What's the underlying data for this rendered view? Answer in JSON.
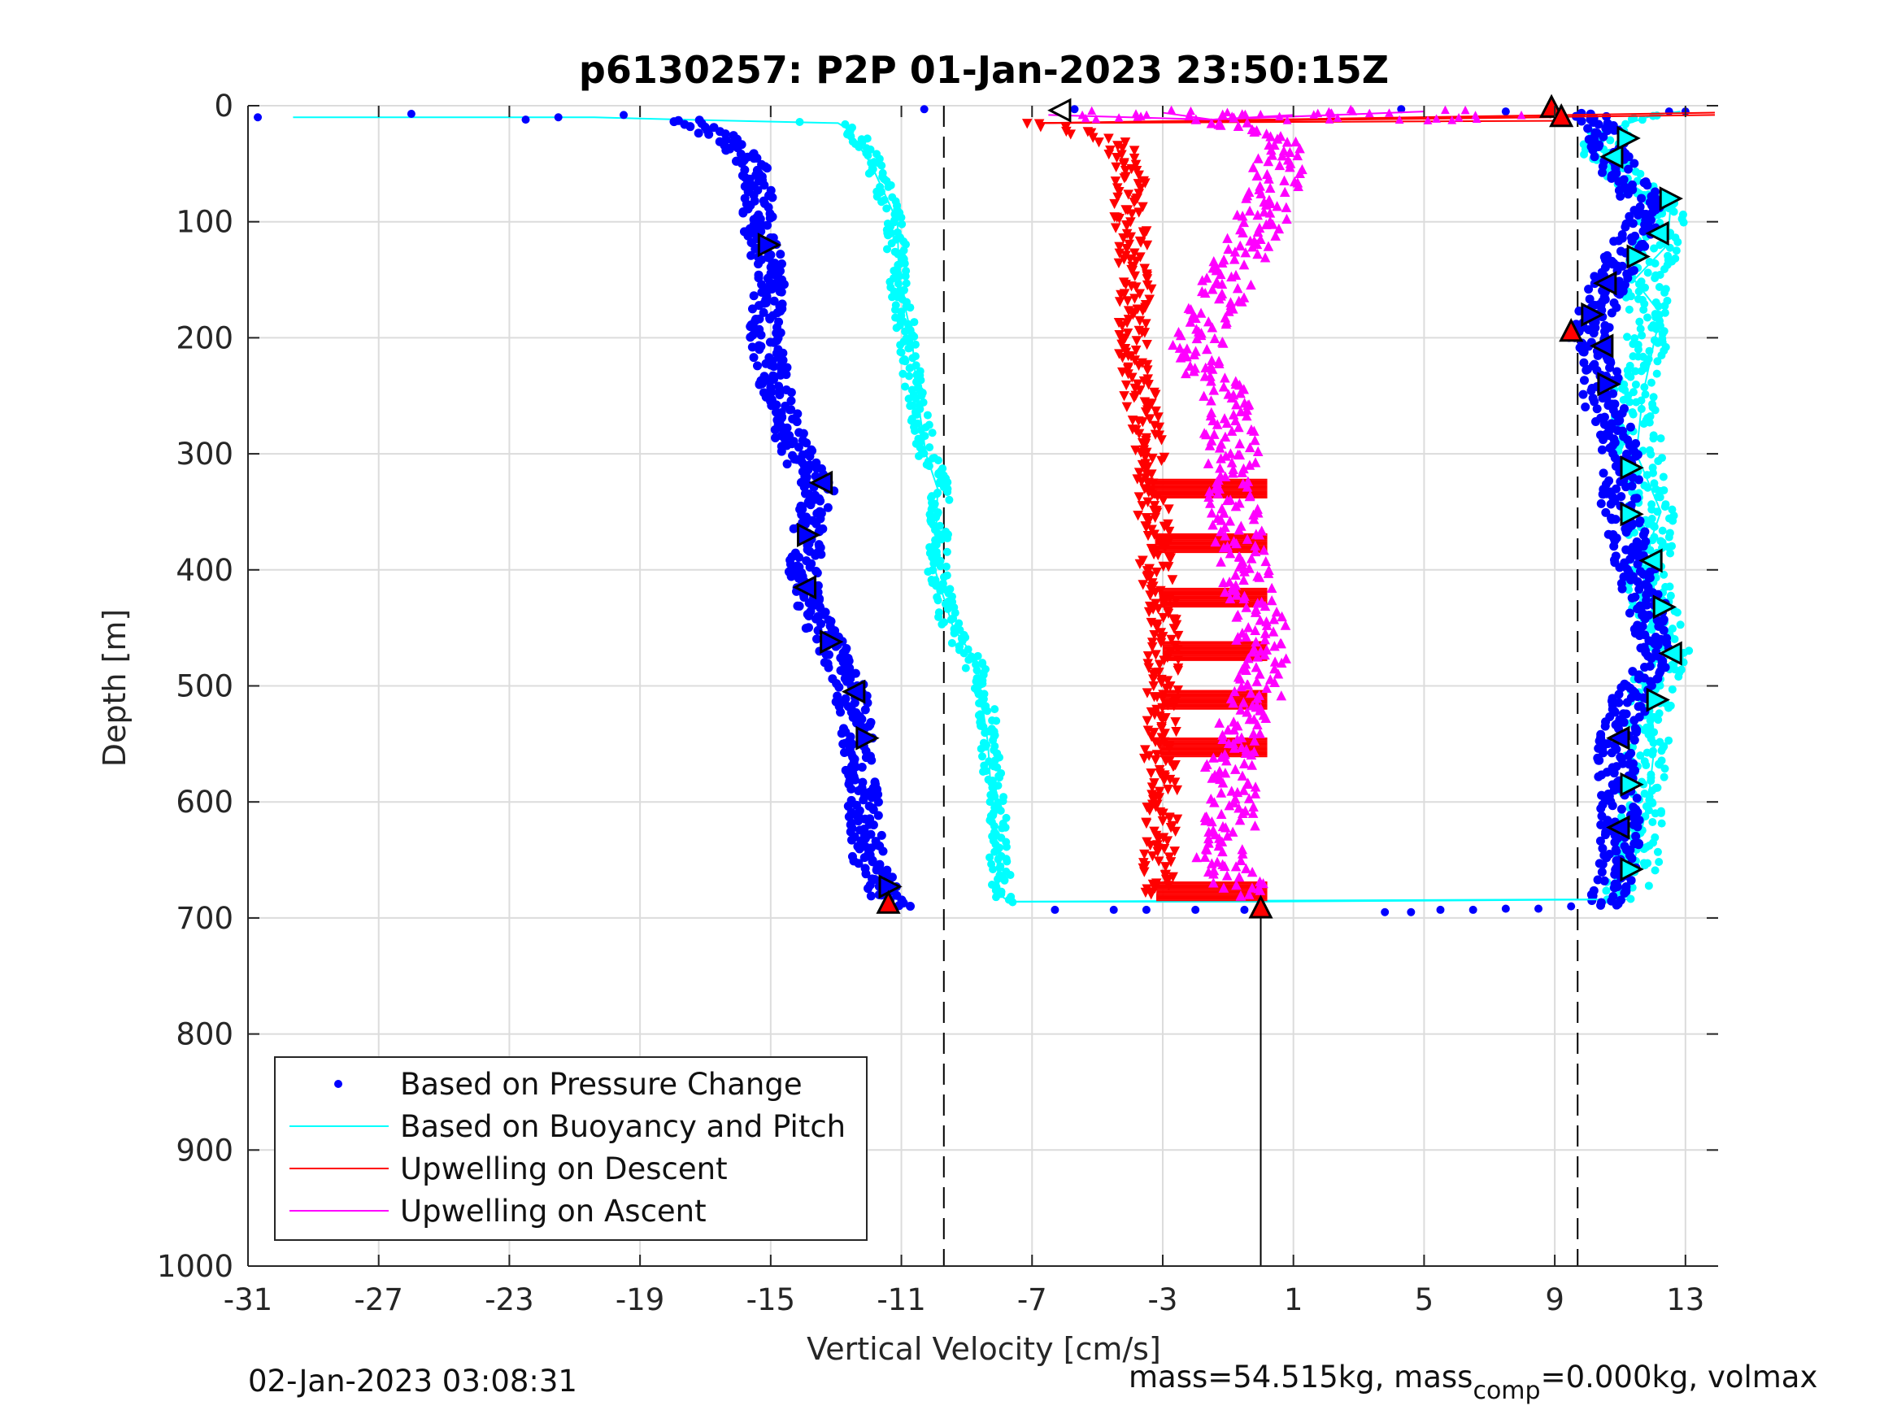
{
  "chart_data": {
    "type": "scatter",
    "title": "p6130257: P2P 01-Jan-2023 23:50:15Z",
    "xlabel": "Vertical Velocity [cm/s]",
    "ylabel": "Depth [m]",
    "xlim": [
      -31,
      14
    ],
    "ylim": [
      0,
      1000
    ],
    "y_reversed": true,
    "grid": true,
    "xticks": [
      -31,
      -27,
      -23,
      -19,
      -15,
      -11,
      -7,
      -3,
      1,
      5,
      9,
      13
    ],
    "yticks": [
      0,
      100,
      200,
      300,
      400,
      500,
      600,
      700,
      800,
      900,
      1000
    ],
    "legend": {
      "placement": "bottom-left",
      "entries": [
        {
          "label": "Based on Pressure Change",
          "color": "#0000ff",
          "style": "dot"
        },
        {
          "label": "Based on Buoyancy and Pitch",
          "color": "#00ffff",
          "style": "line"
        },
        {
          "label": "Upwelling on Descent",
          "color": "#ff0000",
          "style": "line"
        },
        {
          "label": "Upwelling on Ascent",
          "color": "#ff00ff",
          "style": "line"
        }
      ]
    },
    "reference_lines": {
      "dashed_x": [
        -9.7,
        9.7
      ],
      "solid_x": [
        0
      ]
    },
    "series": [
      {
        "name": "Based on Pressure Change",
        "color": "#0000ff",
        "descent_profile": [
          [
            5,
            -17.5
          ],
          [
            10,
            -17.8
          ],
          [
            20,
            -17
          ],
          [
            30,
            -16.3
          ],
          [
            50,
            -15.5
          ],
          [
            80,
            -15.3
          ],
          [
            100,
            -15.4
          ],
          [
            150,
            -15
          ],
          [
            200,
            -15.2
          ],
          [
            250,
            -14.8
          ],
          [
            300,
            -14.2
          ],
          [
            330,
            -13.5
          ],
          [
            370,
            -13.9
          ],
          [
            400,
            -14
          ],
          [
            450,
            -13.5
          ],
          [
            500,
            -12.6
          ],
          [
            550,
            -12.3
          ],
          [
            600,
            -12.2
          ],
          [
            650,
            -12
          ],
          [
            680,
            -11.5
          ],
          [
            690,
            -11.2
          ]
        ],
        "ascent_profile": [
          [
            690,
            10.3
          ],
          [
            680,
            10.7
          ],
          [
            650,
            11
          ],
          [
            600,
            11
          ],
          [
            550,
            10.8
          ],
          [
            500,
            11.5
          ],
          [
            470,
            12.2
          ],
          [
            430,
            11.8
          ],
          [
            400,
            11.5
          ],
          [
            350,
            11
          ],
          [
            300,
            11
          ],
          [
            250,
            10.4
          ],
          [
            220,
            10.3
          ],
          [
            200,
            10
          ],
          [
            180,
            10.3
          ],
          [
            150,
            10.7
          ],
          [
            120,
            11.2
          ],
          [
            90,
            12
          ],
          [
            60,
            11
          ],
          [
            30,
            10.6
          ],
          [
            10,
            10.3
          ],
          [
            5,
            9.5
          ]
        ],
        "surface_points": [
          [
            10,
            -30.7
          ],
          [
            7,
            -26
          ],
          [
            12,
            -22.5
          ],
          [
            10,
            -21.5
          ],
          [
            8,
            -19.5
          ],
          [
            3,
            -10.3
          ],
          [
            3,
            -5.7
          ],
          [
            3,
            4.3
          ],
          [
            5,
            7.5
          ],
          [
            5,
            12.5
          ],
          [
            5,
            13
          ]
        ],
        "bottom_points": [
          [
            693,
            -6.3
          ],
          [
            693,
            -4.5
          ],
          [
            693,
            -3.5
          ],
          [
            693,
            -2
          ],
          [
            693,
            -0.5
          ],
          [
            695,
            3.8
          ],
          [
            695,
            4.6
          ],
          [
            693,
            5.5
          ],
          [
            693,
            6.5
          ],
          [
            692,
            7.5
          ],
          [
            692,
            8.5
          ],
          [
            690,
            9.5
          ]
        ]
      },
      {
        "name": "Based on Buoyancy and Pitch",
        "color": "#00ffff",
        "descent_profile": [
          [
            10,
            -29.5
          ],
          [
            10,
            -20.5
          ],
          [
            12,
            -17.8
          ],
          [
            15,
            -12.8
          ],
          [
            20,
            -12.5
          ],
          [
            50,
            -11.8
          ],
          [
            100,
            -11.2
          ],
          [
            150,
            -11.1
          ],
          [
            200,
            -10.8
          ],
          [
            250,
            -10.6
          ],
          [
            300,
            -10.2
          ],
          [
            330,
            -9.8
          ],
          [
            400,
            -9.9
          ],
          [
            450,
            -9.5
          ],
          [
            480,
            -8.8
          ],
          [
            500,
            -8.5
          ],
          [
            550,
            -8.3
          ],
          [
            600,
            -8.1
          ],
          [
            650,
            -8
          ],
          [
            680,
            -7.9
          ],
          [
            686,
            -7.8
          ]
        ],
        "ascent_profile": [
          [
            686,
            0
          ],
          [
            684,
            11
          ],
          [
            650,
            11.6
          ],
          [
            600,
            11.6
          ],
          [
            550,
            11.8
          ],
          [
            500,
            12
          ],
          [
            470,
            12.5
          ],
          [
            430,
            12
          ],
          [
            400,
            11.8
          ],
          [
            350,
            12
          ],
          [
            300,
            11.6
          ],
          [
            250,
            11.4
          ],
          [
            200,
            11.8
          ],
          [
            180,
            12
          ],
          [
            150,
            11.7
          ],
          [
            120,
            12.2
          ],
          [
            90,
            12.3
          ],
          [
            60,
            11
          ],
          [
            40,
            10.5
          ],
          [
            20,
            10.6
          ],
          [
            8,
            12
          ],
          [
            5,
            13
          ]
        ]
      },
      {
        "name": "Upwelling on Descent",
        "color": "#ff0000",
        "profile": [
          [
            15,
            -6.8
          ],
          [
            30,
            -4.5
          ],
          [
            50,
            -4
          ],
          [
            100,
            -4
          ],
          [
            150,
            -3.8
          ],
          [
            200,
            -4
          ],
          [
            250,
            -3.7
          ],
          [
            300,
            -3.4
          ],
          [
            330,
            -3.3
          ],
          [
            400,
            -3.2
          ],
          [
            450,
            -3
          ],
          [
            500,
            -3
          ],
          [
            550,
            -3.1
          ],
          [
            600,
            -3
          ],
          [
            650,
            -3.1
          ],
          [
            680,
            -3.2
          ]
        ],
        "bands": [
          {
            "depth": 330,
            "to": 0.2
          },
          {
            "depth": 377,
            "to": 0.2
          },
          {
            "depth": 424,
            "to": 0.2
          },
          {
            "depth": 470,
            "to": 0.2
          },
          {
            "depth": 512,
            "to": 0.2
          },
          {
            "depth": 553,
            "to": 0.2
          },
          {
            "depth": 677,
            "to": 0.2
          }
        ]
      },
      {
        "name": "Upwelling on Ascent",
        "color": "#ff00ff",
        "profile": [
          [
            10,
            -1.5
          ],
          [
            30,
            0.5
          ],
          [
            60,
            0.5
          ],
          [
            100,
            0
          ],
          [
            150,
            -1
          ],
          [
            180,
            -1.5
          ],
          [
            200,
            -2
          ],
          [
            250,
            -1.2
          ],
          [
            300,
            -0.8
          ],
          [
            330,
            -1
          ],
          [
            400,
            -0.5
          ],
          [
            450,
            0
          ],
          [
            500,
            0.1
          ],
          [
            550,
            -1
          ],
          [
            600,
            -0.8
          ],
          [
            650,
            -1.2
          ],
          [
            680,
            -0.5
          ]
        ]
      }
    ],
    "markers": [
      {
        "type": "triangle-left",
        "depth": 4,
        "v": -6.1,
        "fill": "#ffffff"
      },
      {
        "type": "triangle-right",
        "depth": 120,
        "v": -15.1,
        "fill": "#0000ff"
      },
      {
        "type": "triangle-left",
        "depth": 325,
        "v": -13.4,
        "fill": "#0000ff"
      },
      {
        "type": "triangle-right",
        "depth": 370,
        "v": -13.9,
        "fill": "#0000ff"
      },
      {
        "type": "triangle-left",
        "depth": 415,
        "v": -13.9,
        "fill": "#0000ff"
      },
      {
        "type": "triangle-right",
        "depth": 462,
        "v": -13.2,
        "fill": "#0000ff"
      },
      {
        "type": "triangle-left",
        "depth": 505,
        "v": -12.4,
        "fill": "#0000ff"
      },
      {
        "type": "triangle-right",
        "depth": 545,
        "v": -12.1,
        "fill": "#0000ff"
      },
      {
        "type": "triangle-right",
        "depth": 673,
        "v": -11.4,
        "fill": "#0000ff"
      },
      {
        "type": "triangle-up",
        "depth": 688,
        "v": -11.4,
        "fill": "#ff0000"
      },
      {
        "type": "triangle-up",
        "depth": 692,
        "v": 0,
        "fill": "#ff0000"
      },
      {
        "type": "triangle-up",
        "depth": 2,
        "v": 8.9,
        "fill": "#ff0000"
      },
      {
        "type": "triangle-up",
        "depth": 10,
        "v": 9.2,
        "fill": "#ff0000"
      },
      {
        "type": "triangle-right",
        "depth": 28,
        "v": 11.2,
        "fill": "#00ffff"
      },
      {
        "type": "triangle-left",
        "depth": 44,
        "v": 10.8,
        "fill": "#00ffff"
      },
      {
        "type": "triangle-right",
        "depth": 80,
        "v": 12.5,
        "fill": "#00ffff"
      },
      {
        "type": "triangle-left",
        "depth": 110,
        "v": 12.2,
        "fill": "#00ffff"
      },
      {
        "type": "triangle-right",
        "depth": 130,
        "v": 11.5,
        "fill": "#00ffff"
      },
      {
        "type": "triangle-left",
        "depth": 153,
        "v": 10.6,
        "fill": "#0000ff"
      },
      {
        "type": "triangle-right",
        "depth": 180,
        "v": 10.1,
        "fill": "#0000ff"
      },
      {
        "type": "triangle-up",
        "depth": 195,
        "v": 9.5,
        "fill": "#ff0000"
      },
      {
        "type": "triangle-left",
        "depth": 207,
        "v": 10.5,
        "fill": "#0000ff"
      },
      {
        "type": "triangle-right",
        "depth": 240,
        "v": 10.6,
        "fill": "#0000ff"
      },
      {
        "type": "triangle-right",
        "depth": 312,
        "v": 11.3,
        "fill": "#00ffff"
      },
      {
        "type": "triangle-right",
        "depth": 352,
        "v": 11.3,
        "fill": "#00ffff"
      },
      {
        "type": "triangle-left",
        "depth": 392,
        "v": 12.0,
        "fill": "#00ffff"
      },
      {
        "type": "triangle-right",
        "depth": 432,
        "v": 12.3,
        "fill": "#00ffff"
      },
      {
        "type": "triangle-left",
        "depth": 472,
        "v": 12.6,
        "fill": "#00ffff"
      },
      {
        "type": "triangle-right",
        "depth": 512,
        "v": 12.1,
        "fill": "#00ffff"
      },
      {
        "type": "triangle-left",
        "depth": 545,
        "v": 11.0,
        "fill": "#0000ff"
      },
      {
        "type": "triangle-right",
        "depth": 585,
        "v": 11.3,
        "fill": "#00ffff"
      },
      {
        "type": "triangle-left",
        "depth": 622,
        "v": 11.0,
        "fill": "#0000ff"
      },
      {
        "type": "triangle-right",
        "depth": 658,
        "v": 11.3,
        "fill": "#00ffff"
      }
    ]
  },
  "footer": {
    "left": "02-Jan-2023 03:08:31",
    "right_main": "mass=54.515kg, mass",
    "right_sub": "comp",
    "right_tail": "=0.000kg, volmax"
  }
}
